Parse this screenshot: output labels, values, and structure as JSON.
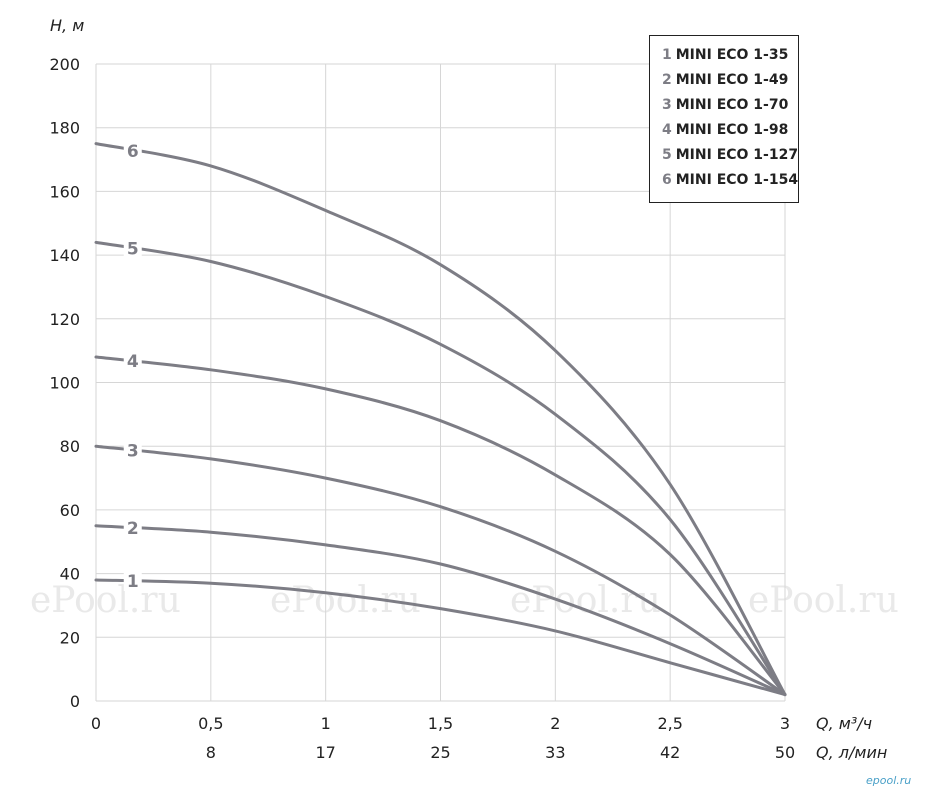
{
  "chart_data": {
    "type": "line",
    "title": "",
    "ylabel": "H, м",
    "xlabel": "Q, м³/ч",
    "xlabel2": "Q, л/мин",
    "xlim": [
      0,
      3
    ],
    "ylim": [
      0,
      200
    ],
    "x_ticks": [
      "0",
      "0,5",
      "1",
      "1,5",
      "2",
      "2,5",
      "3"
    ],
    "x2_ticks": [
      "8",
      "17",
      "25",
      "33",
      "42",
      "50"
    ],
    "y_ticks": [
      "0",
      "20",
      "40",
      "60",
      "80",
      "100",
      "120",
      "140",
      "160",
      "180",
      "200"
    ],
    "grid": true,
    "legend_position": "top-right",
    "series": [
      {
        "name": "MINI ECO 1-35",
        "label": "1",
        "x": [
          0,
          0.5,
          1,
          1.5,
          2,
          2.5,
          3
        ],
        "y": [
          38,
          37,
          34,
          29,
          22,
          12,
          2
        ]
      },
      {
        "name": "MINI ECO 1-49",
        "label": "2",
        "x": [
          0,
          0.5,
          1,
          1.5,
          2,
          2.5,
          3
        ],
        "y": [
          55,
          53,
          49,
          43,
          32,
          18,
          2
        ]
      },
      {
        "name": "MINI ECO 1-70",
        "label": "3",
        "x": [
          0,
          0.5,
          1,
          1.5,
          2,
          2.5,
          3
        ],
        "y": [
          80,
          76,
          70,
          61,
          47,
          27,
          2
        ]
      },
      {
        "name": "MINI ECO 1-98",
        "label": "4",
        "x": [
          0,
          0.5,
          1,
          1.5,
          2,
          2.5,
          3
        ],
        "y": [
          108,
          104,
          98,
          88,
          71,
          46,
          2
        ]
      },
      {
        "name": "MINI ECO 1-127",
        "label": "5",
        "x": [
          0,
          0.5,
          1,
          1.5,
          2,
          2.5,
          3
        ],
        "y": [
          144,
          138,
          127,
          112,
          90,
          57,
          2
        ]
      },
      {
        "name": "MINI ECO 1-154",
        "label": "6",
        "x": [
          0,
          0.5,
          1,
          1.5,
          2,
          2.5,
          3
        ],
        "y": [
          175,
          168,
          154,
          137,
          110,
          68,
          2
        ]
      }
    ]
  },
  "watermarks": [
    "ePool.ru",
    "ePool.ru",
    "ePool.ru",
    "ePool.ru"
  ],
  "corner_mark": "epool.ru"
}
